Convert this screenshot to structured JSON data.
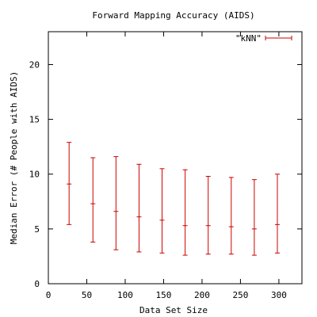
{
  "chart_data": {
    "type": "scatter",
    "title": "Forward Mapping Accuracy (AIDS)",
    "xlabel": "Data Set Size",
    "ylabel": "Median Error (# People with AIDS)",
    "xlim": [
      0,
      330
    ],
    "ylim": [
      0,
      23
    ],
    "xticks": [
      0,
      50,
      100,
      150,
      200,
      250,
      300
    ],
    "yticks": [
      0,
      5,
      10,
      15,
      20
    ],
    "grid": false,
    "legend_position": "top-right",
    "series": [
      {
        "name": "\"kNN\"",
        "color": "#cc0000",
        "points": [
          {
            "x": 27,
            "y": 9.1,
            "low": 5.4,
            "high": 12.9
          },
          {
            "x": 58,
            "y": 7.3,
            "low": 3.8,
            "high": 11.5
          },
          {
            "x": 88,
            "y": 6.6,
            "low": 3.1,
            "high": 11.6
          },
          {
            "x": 118,
            "y": 6.1,
            "low": 2.9,
            "high": 10.9
          },
          {
            "x": 148,
            "y": 5.8,
            "low": 2.8,
            "high": 10.5
          },
          {
            "x": 178,
            "y": 5.3,
            "low": 2.6,
            "high": 10.4
          },
          {
            "x": 208,
            "y": 5.3,
            "low": 2.7,
            "high": 9.8
          },
          {
            "x": 238,
            "y": 5.2,
            "low": 2.7,
            "high": 9.7
          },
          {
            "x": 268,
            "y": 5.0,
            "low": 2.6,
            "high": 9.5
          },
          {
            "x": 298,
            "y": 5.4,
            "low": 2.8,
            "high": 10.0
          }
        ]
      }
    ]
  }
}
